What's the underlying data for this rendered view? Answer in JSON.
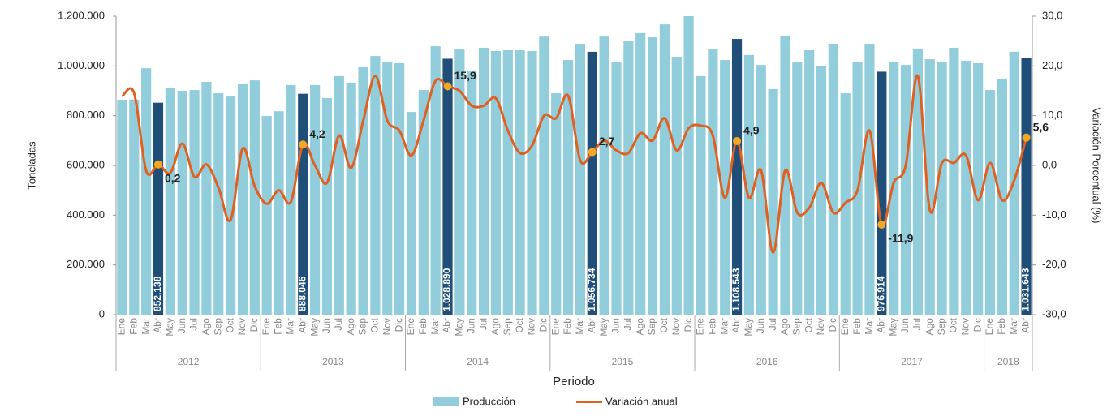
{
  "chart_data": {
    "type": "bar-line",
    "x_label": "Periodo",
    "y_label": "Toneladas",
    "y2_label": "Variación Porcentual (%)",
    "categories": [
      "Ene",
      "Feb",
      "Mar",
      "Abr",
      "May",
      "Jun",
      "Jul",
      "Ago",
      "Sep",
      "Oct",
      "Nov",
      "Dic",
      "Ene",
      "Feb",
      "Mar",
      "Abr",
      "May",
      "Jun",
      "Jul",
      "Ago",
      "Sep",
      "Oct",
      "Nov",
      "Dic",
      "Ene",
      "Feb",
      "Mar",
      "Abr",
      "May",
      "Jun",
      "Jul",
      "Ago",
      "Sep",
      "Oct",
      "Nov",
      "Dic",
      "Ene",
      "Feb",
      "Mar",
      "Abr",
      "May",
      "Jun",
      "Jul",
      "Ago",
      "Sep",
      "Oct",
      "Nov",
      "Dic",
      "Ene",
      "Feb",
      "Mar",
      "Abr",
      "May",
      "Jun",
      "Jul",
      "Ago",
      "Sep",
      "Oct",
      "Nov",
      "Dic",
      "Ene",
      "Feb",
      "Mar",
      "Abr",
      "May",
      "Jun",
      "Jul",
      "Ago",
      "Sep",
      "Oct",
      "Nov",
      "Dic",
      "Ene",
      "Feb",
      "Mar",
      "Abr"
    ],
    "years": [
      "2012",
      "2013",
      "2014",
      "2015",
      "2016",
      "2017",
      "2018"
    ],
    "ylim": [
      0,
      1200000
    ],
    "yticks": [
      {
        "value": 0,
        "label": "0"
      },
      {
        "value": 200000,
        "label": "200.000"
      },
      {
        "value": 400000,
        "label": "400.000"
      },
      {
        "value": 600000,
        "label": "600.000"
      },
      {
        "value": 800000,
        "label": "800.000"
      },
      {
        "value": 1000000,
        "label": "1.000.000"
      },
      {
        "value": 1200000,
        "label": "1.200.000"
      }
    ],
    "y2lim": [
      -30,
      30
    ],
    "y2ticks": [
      {
        "value": -30,
        "label": "-30,0"
      },
      {
        "value": -20,
        "label": "-20,0"
      },
      {
        "value": -10,
        "label": "-10,0"
      },
      {
        "value": 0,
        "label": "0,0"
      },
      {
        "value": 10,
        "label": "10,0"
      },
      {
        "value": 20,
        "label": "20,0"
      },
      {
        "value": 30,
        "label": "30,0"
      }
    ],
    "highlight_color": "#1f4e79",
    "series": [
      {
        "name": "Producción",
        "kind": "bar",
        "color": "#92cddc",
        "values": [
          864000,
          865000,
          991000,
          852138,
          913000,
          900000,
          903000,
          936000,
          890000,
          877000,
          926000,
          942000,
          799000,
          818000,
          923000,
          888046,
          923000,
          871000,
          959000,
          933000,
          995000,
          1040000,
          1014000,
          1011000,
          815000,
          903000,
          1079000,
          1028890,
          1066000,
          982000,
          1073000,
          1060000,
          1063000,
          1063000,
          1060000,
          1118000,
          890000,
          1024000,
          1089000,
          1056734,
          1118000,
          1014000,
          1099000,
          1132000,
          1115000,
          1167000,
          1037000,
          1200000,
          959000,
          1066000,
          1024000,
          1108543,
          1044000,
          1004000,
          907000,
          1122000,
          1014000,
          1063000,
          1001000,
          1089000,
          890000,
          1017000,
          1089000,
          976914,
          1014000,
          1004000,
          1070000,
          1027000,
          1017000,
          1073000,
          1021000,
          1011000,
          903000,
          946000,
          1057000,
          1031643
        ],
        "value_labels": [
          null,
          null,
          null,
          "852.138",
          null,
          null,
          null,
          null,
          null,
          null,
          null,
          null,
          null,
          null,
          null,
          "888.046",
          null,
          null,
          null,
          null,
          null,
          null,
          null,
          null,
          null,
          null,
          null,
          "1.028.890",
          null,
          null,
          null,
          null,
          null,
          null,
          null,
          null,
          null,
          null,
          null,
          "1.056.734",
          null,
          null,
          null,
          null,
          null,
          null,
          null,
          null,
          null,
          null,
          null,
          "1.108.543",
          null,
          null,
          null,
          null,
          null,
          null,
          null,
          null,
          null,
          null,
          null,
          "976.914",
          null,
          null,
          null,
          null,
          null,
          null,
          null,
          null,
          null,
          null,
          null,
          "1.031.643"
        ]
      },
      {
        "name": "Variación anual",
        "kind": "line",
        "axis": "y2",
        "color": "#e0601f",
        "values": [
          13.9,
          14.5,
          -1.1,
          0.2,
          -1.5,
          4.4,
          -2.3,
          0.2,
          -4.5,
          -11,
          3.4,
          -4.2,
          -7.7,
          -5,
          -7.3,
          4.2,
          0,
          -3.5,
          6,
          -0.5,
          9,
          18,
          9,
          7,
          2,
          9,
          17,
          15.9,
          15,
          12,
          12,
          13.5,
          7,
          2.5,
          4,
          10,
          9.5,
          14,
          1,
          2.7,
          5,
          3,
          2.5,
          6.5,
          5,
          9.5,
          3,
          7.5,
          8,
          6,
          -6.5,
          4.9,
          -6.5,
          -1,
          -17.5,
          -1,
          -9.5,
          -8.5,
          -3.5,
          -9.5,
          -7.5,
          -5,
          7,
          -11.9,
          -3.5,
          0,
          18,
          -9,
          0.5,
          0.5,
          2,
          -7,
          0.5,
          -7,
          -3,
          5.6
        ],
        "value_labels": [
          null,
          null,
          null,
          "0,2",
          null,
          null,
          null,
          null,
          null,
          null,
          null,
          null,
          null,
          null,
          null,
          "4,2",
          null,
          null,
          null,
          null,
          null,
          null,
          null,
          null,
          null,
          null,
          null,
          "15,9",
          null,
          null,
          null,
          null,
          null,
          null,
          null,
          null,
          null,
          null,
          null,
          "2,7",
          null,
          null,
          null,
          null,
          null,
          null,
          null,
          null,
          null,
          null,
          null,
          "4,9",
          null,
          null,
          null,
          null,
          null,
          null,
          null,
          null,
          null,
          null,
          null,
          "-11,9",
          null,
          null,
          null,
          null,
          null,
          null,
          null,
          null,
          null,
          null,
          null,
          "5,6"
        ]
      }
    ]
  }
}
